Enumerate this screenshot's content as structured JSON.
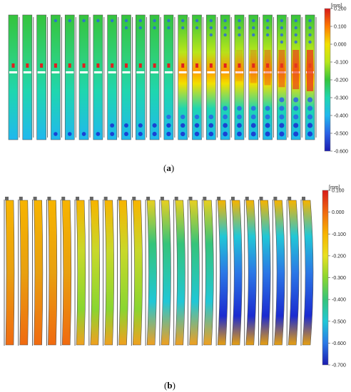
{
  "panel_a": {
    "caption_letter": "a",
    "scale": {
      "unit": "[mm]",
      "ticks": [
        "0.200",
        "0.100",
        "0.000",
        "-0.100",
        "-0.200",
        "-0.300",
        "-0.400",
        "-0.500",
        "-0.600"
      ],
      "colors": [
        "#d71a1a",
        "#ff7a00",
        "#f2e000",
        "#b8e61a",
        "#35c43c",
        "#1fd6b0",
        "#20b8ee",
        "#2b62e6",
        "#1b1bb0"
      ]
    },
    "specimen_count": 22
  },
  "panel_b": {
    "caption_letter": "b",
    "scale": {
      "unit": "[mm]",
      "ticks": [
        "0.100",
        "0.000",
        "-0.100",
        "-0.200",
        "-0.300",
        "-0.400",
        "-0.500",
        "-0.600",
        "-0.700"
      ],
      "colors": [
        "#d71a1a",
        "#f06a10",
        "#f7b400",
        "#e8e020",
        "#8ad630",
        "#35c47a",
        "#21c7d6",
        "#2b78e6",
        "#1b1bb0"
      ]
    },
    "specimen_count": 22
  }
}
